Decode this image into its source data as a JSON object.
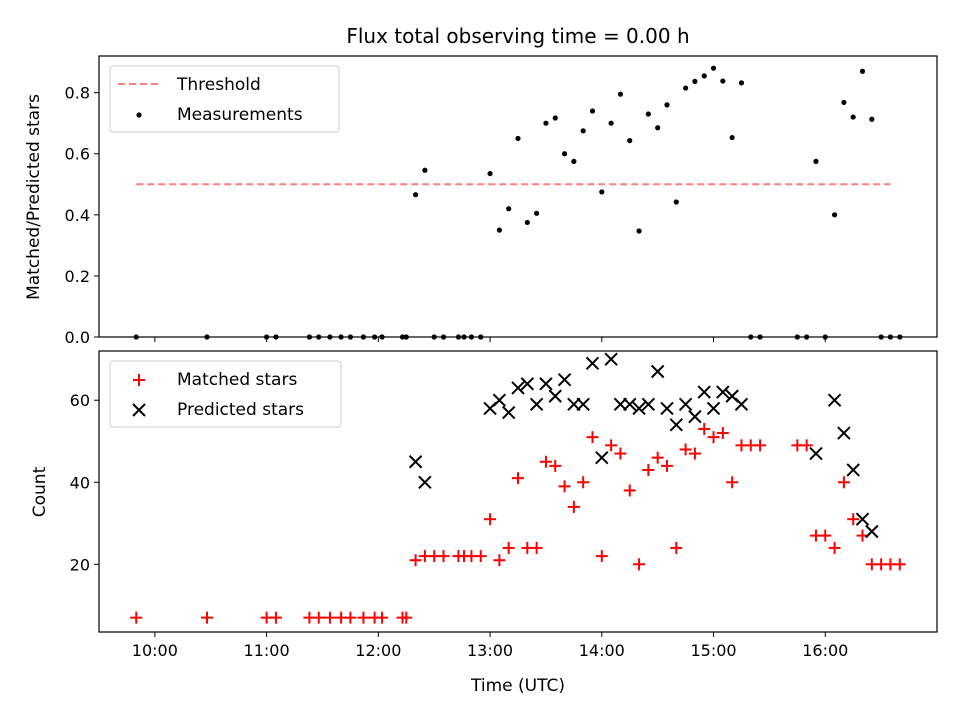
{
  "chart_data": {
    "title": "Flux total observing time = 0.00 h",
    "xlabel": "Time (UTC)",
    "x_ticks": [
      "10:00",
      "11:00",
      "12:00",
      "13:00",
      "14:00",
      "15:00",
      "16:00"
    ],
    "xlim": [
      "09:30",
      "17:00"
    ],
    "top": {
      "type": "scatter",
      "ylabel": "Matched/Predicted stars",
      "ylim": [
        0,
        0.92
      ],
      "y_ticks": [
        "0.0",
        "0.2",
        "0.4",
        "0.6",
        "0.8"
      ],
      "legend_position": "upper-left",
      "threshold": {
        "name": "Threshold",
        "value": 0.5,
        "x_range": [
          "09:50",
          "16:35"
        ],
        "color": "#ff7f7f"
      },
      "series": [
        {
          "name": "Measurements",
          "color": "#000000",
          "points": [
            [
              "09:50",
              0.0
            ],
            [
              "10:28",
              0.0
            ],
            [
              "11:00",
              0.0
            ],
            [
              "11:05",
              0.0
            ],
            [
              "11:23",
              0.0
            ],
            [
              "11:28",
              0.0
            ],
            [
              "11:34",
              0.0
            ],
            [
              "11:40",
              0.0
            ],
            [
              "11:45",
              0.0
            ],
            [
              "11:52",
              0.0
            ],
            [
              "11:58",
              0.0
            ],
            [
              "12:02",
              0.0
            ],
            [
              "12:13",
              0.0
            ],
            [
              "12:15",
              0.0
            ],
            [
              "12:20",
              0.466
            ],
            [
              "12:25",
              0.546
            ],
            [
              "12:30",
              0.0
            ],
            [
              "12:35",
              0.0
            ],
            [
              "12:43",
              0.0
            ],
            [
              "12:46",
              0.0
            ],
            [
              "12:50",
              0.0
            ],
            [
              "12:55",
              0.0
            ],
            [
              "13:00",
              0.535
            ],
            [
              "13:05",
              0.35
            ],
            [
              "13:10",
              0.42
            ],
            [
              "13:15",
              0.65
            ],
            [
              "13:20",
              0.375
            ],
            [
              "13:25",
              0.405
            ],
            [
              "13:30",
              0.7
            ],
            [
              "13:35",
              0.717
            ],
            [
              "13:40",
              0.6
            ],
            [
              "13:45",
              0.575
            ],
            [
              "13:50",
              0.675
            ],
            [
              "13:55",
              0.74
            ],
            [
              "14:00",
              0.475
            ],
            [
              "14:05",
              0.7
            ],
            [
              "14:10",
              0.795
            ],
            [
              "14:15",
              0.643
            ],
            [
              "14:20",
              0.347
            ],
            [
              "14:25",
              0.73
            ],
            [
              "14:30",
              0.685
            ],
            [
              "14:35",
              0.76
            ],
            [
              "14:40",
              0.442
            ],
            [
              "14:45",
              0.815
            ],
            [
              "14:50",
              0.837
            ],
            [
              "14:55",
              0.855
            ],
            [
              "15:00",
              0.88
            ],
            [
              "15:05",
              0.838
            ],
            [
              "15:10",
              0.653
            ],
            [
              "15:15",
              0.832
            ],
            [
              "15:20",
              0.0
            ],
            [
              "15:25",
              0.0
            ],
            [
              "15:45",
              0.0
            ],
            [
              "15:50",
              0.0
            ],
            [
              "15:55",
              0.575
            ],
            [
              "16:00",
              0.0
            ],
            [
              "16:05",
              0.4
            ],
            [
              "16:10",
              0.768
            ],
            [
              "16:15",
              0.72
            ],
            [
              "16:20",
              0.87
            ],
            [
              "16:25",
              0.713
            ],
            [
              "16:30",
              0.0
            ],
            [
              "16:35",
              0.0
            ],
            [
              "16:40",
              0.0
            ]
          ]
        }
      ]
    },
    "bottom": {
      "type": "scatter",
      "ylabel": "Count",
      "ylim": [
        3.5,
        72
      ],
      "y_ticks": [
        "20",
        "40",
        "60"
      ],
      "legend_position": "upper-left",
      "series": [
        {
          "name": "Matched stars",
          "marker": "plus",
          "color": "#ff0000",
          "points": [
            [
              "09:50",
              7
            ],
            [
              "10:28",
              7
            ],
            [
              "11:00",
              7
            ],
            [
              "11:05",
              7
            ],
            [
              "11:23",
              7
            ],
            [
              "11:28",
              7
            ],
            [
              "11:34",
              7
            ],
            [
              "11:40",
              7
            ],
            [
              "11:45",
              7
            ],
            [
              "11:52",
              7
            ],
            [
              "11:58",
              7
            ],
            [
              "12:02",
              7
            ],
            [
              "12:13",
              7
            ],
            [
              "12:15",
              7
            ],
            [
              "12:20",
              21
            ],
            [
              "12:25",
              22
            ],
            [
              "12:30",
              22
            ],
            [
              "12:35",
              22
            ],
            [
              "12:43",
              22
            ],
            [
              "12:46",
              22
            ],
            [
              "12:50",
              22
            ],
            [
              "12:55",
              22
            ],
            [
              "13:00",
              31
            ],
            [
              "13:05",
              21
            ],
            [
              "13:10",
              24
            ],
            [
              "13:15",
              41
            ],
            [
              "13:20",
              24
            ],
            [
              "13:25",
              24
            ],
            [
              "13:30",
              45
            ],
            [
              "13:35",
              44
            ],
            [
              "13:40",
              39
            ],
            [
              "13:45",
              34
            ],
            [
              "13:50",
              40
            ],
            [
              "13:55",
              51
            ],
            [
              "14:00",
              22
            ],
            [
              "14:05",
              49
            ],
            [
              "14:10",
              47
            ],
            [
              "14:15",
              38
            ],
            [
              "14:20",
              20
            ],
            [
              "14:25",
              43
            ],
            [
              "14:30",
              46
            ],
            [
              "14:35",
              44
            ],
            [
              "14:40",
              24
            ],
            [
              "14:45",
              48
            ],
            [
              "14:50",
              47
            ],
            [
              "14:55",
              53
            ],
            [
              "15:00",
              51
            ],
            [
              "15:05",
              52
            ],
            [
              "15:10",
              40
            ],
            [
              "15:15",
              49
            ],
            [
              "15:20",
              49
            ],
            [
              "15:25",
              49
            ],
            [
              "15:45",
              49
            ],
            [
              "15:50",
              49
            ],
            [
              "15:55",
              27
            ],
            [
              "16:00",
              27
            ],
            [
              "16:05",
              24
            ],
            [
              "16:10",
              40
            ],
            [
              "16:15",
              31
            ],
            [
              "16:20",
              27
            ],
            [
              "16:25",
              20
            ],
            [
              "16:30",
              20
            ],
            [
              "16:35",
              20
            ],
            [
              "16:40",
              20
            ]
          ]
        },
        {
          "name": "Predicted stars",
          "marker": "x",
          "color": "#000000",
          "points": [
            [
              "12:20",
              45
            ],
            [
              "12:25",
              40
            ],
            [
              "13:00",
              58
            ],
            [
              "13:05",
              60
            ],
            [
              "13:10",
              57
            ],
            [
              "13:15",
              63
            ],
            [
              "13:20",
              64
            ],
            [
              "13:25",
              59
            ],
            [
              "13:30",
              64
            ],
            [
              "13:35",
              61
            ],
            [
              "13:40",
              65
            ],
            [
              "13:45",
              59
            ],
            [
              "13:50",
              59
            ],
            [
              "13:55",
              69
            ],
            [
              "14:00",
              46
            ],
            [
              "14:05",
              70
            ],
            [
              "14:10",
              59
            ],
            [
              "14:15",
              59
            ],
            [
              "14:20",
              58
            ],
            [
              "14:25",
              59
            ],
            [
              "14:30",
              67
            ],
            [
              "14:35",
              58
            ],
            [
              "14:40",
              54
            ],
            [
              "14:45",
              59
            ],
            [
              "14:50",
              56
            ],
            [
              "14:55",
              62
            ],
            [
              "15:00",
              58
            ],
            [
              "15:05",
              62
            ],
            [
              "15:10",
              61
            ],
            [
              "15:15",
              59
            ],
            [
              "15:55",
              47
            ],
            [
              "16:05",
              60
            ],
            [
              "16:10",
              52
            ],
            [
              "16:15",
              43
            ],
            [
              "16:20",
              31
            ],
            [
              "16:25",
              28
            ]
          ]
        }
      ]
    }
  }
}
